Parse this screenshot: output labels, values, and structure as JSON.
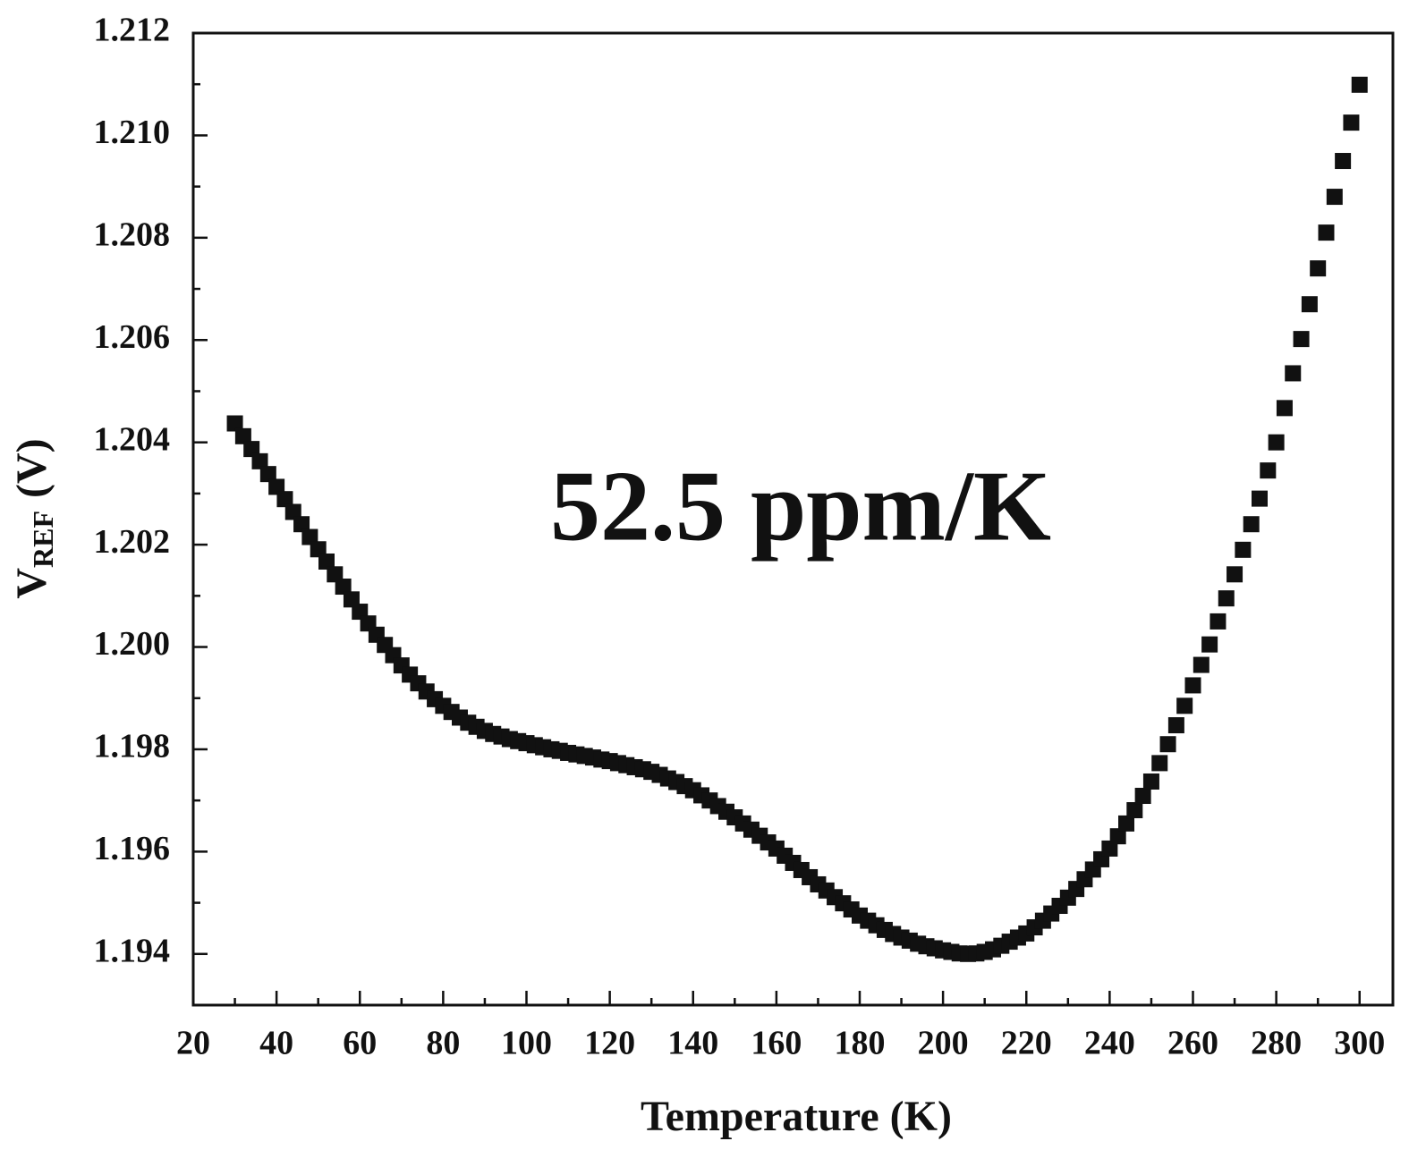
{
  "chart_data": {
    "type": "scatter",
    "x_label": "Temperature (K)",
    "y_label": "V",
    "y_label_sub": "REF",
    "y_label_unit": "(V)",
    "annotation": "52.5 ppm/K",
    "color": "#111111",
    "xlim": [
      20,
      308
    ],
    "ylim": [
      1.193,
      1.212
    ],
    "xticks": [
      20,
      40,
      60,
      80,
      100,
      120,
      140,
      160,
      180,
      200,
      220,
      240,
      260,
      280,
      300
    ],
    "xminorticks": [
      30,
      50,
      70,
      90,
      110,
      130,
      150,
      170,
      190,
      210,
      230,
      250,
      270,
      290
    ],
    "yticks": [
      1.194,
      1.196,
      1.198,
      {
        "value": 1.2,
        "label": "1.200"
      },
      1.202,
      1.204,
      1.206,
      1.208,
      {
        "value": 1.21,
        "label": "1.210"
      },
      1.212
    ],
    "yminorticks": [
      1.193,
      1.195,
      1.197,
      1.199,
      1.201,
      1.203,
      1.205,
      1.207,
      1.209,
      1.211
    ],
    "x": [
      30,
      32,
      34,
      36,
      38,
      40,
      42,
      44,
      46,
      48,
      50,
      52,
      54,
      56,
      58,
      60,
      62,
      64,
      66,
      68,
      70,
      72,
      74,
      76,
      78,
      80,
      82,
      84,
      86,
      88,
      90,
      92,
      94,
      96,
      98,
      100,
      102,
      104,
      106,
      108,
      110,
      112,
      114,
      116,
      118,
      120,
      122,
      124,
      126,
      128,
      130,
      132,
      134,
      136,
      138,
      140,
      142,
      144,
      146,
      148,
      150,
      152,
      154,
      156,
      158,
      160,
      162,
      164,
      166,
      168,
      170,
      172,
      174,
      176,
      178,
      180,
      182,
      184,
      186,
      188,
      190,
      192,
      194,
      196,
      198,
      200,
      202,
      204,
      206,
      208,
      210,
      212,
      214,
      216,
      218,
      220,
      222,
      224,
      226,
      228,
      230,
      232,
      234,
      236,
      238,
      240,
      242,
      244,
      246,
      248,
      250,
      252,
      254,
      256,
      258,
      260,
      262,
      264,
      266,
      268,
      270,
      272,
      274,
      276,
      278,
      280,
      282,
      284,
      286,
      288,
      290,
      292,
      294,
      296,
      298,
      300
    ],
    "values": [
      1.20437,
      1.20412,
      1.20387,
      1.20363,
      1.20338,
      1.20313,
      1.20289,
      1.20264,
      1.2024,
      1.20215,
      1.20191,
      1.20167,
      1.20142,
      1.20118,
      1.20093,
      1.20069,
      1.20046,
      1.20024,
      1.20004,
      1.19984,
      1.19964,
      1.19946,
      1.19929,
      1.19913,
      1.19898,
      1.19885,
      1.19873,
      1.19862,
      1.19852,
      1.19844,
      1.19836,
      1.1983,
      1.19825,
      1.1982,
      1.19816,
      1.19812,
      1.19808,
      1.19804,
      1.198,
      1.19797,
      1.19793,
      1.1979,
      1.19787,
      1.19784,
      1.1978,
      1.19777,
      1.19773,
      1.19769,
      1.19765,
      1.19761,
      1.19756,
      1.1975,
      1.19743,
      1.19736,
      1.19728,
      1.1972,
      1.1971,
      1.197,
      1.19689,
      1.19678,
      1.19667,
      1.19655,
      1.19643,
      1.19631,
      1.19618,
      1.19606,
      1.19592,
      1.19578,
      1.19564,
      1.1955,
      1.19536,
      1.19524,
      1.19511,
      1.19499,
      1.19487,
      1.19475,
      1.19465,
      1.19456,
      1.19447,
      1.19439,
      1.19432,
      1.19426,
      1.1942,
      1.19415,
      1.19411,
      1.19407,
      1.19404,
      1.19401,
      1.194,
      1.19401,
      1.19404,
      1.19409,
      1.19416,
      1.19424,
      1.19432,
      1.1944,
      1.19452,
      1.19465,
      1.19479,
      1.19494,
      1.1951,
      1.19527,
      1.19546,
      1.19565,
      1.19585,
      1.19606,
      1.1963,
      1.19655,
      1.19681,
      1.19709,
      1.19737,
      1.19773,
      1.1981,
      1.19847,
      1.19885,
      1.19925,
      1.19965,
      1.20005,
      1.2005,
      1.20095,
      1.20142,
      1.2019,
      1.2024,
      1.2029,
      1.20345,
      1.204,
      1.20467,
      1.20535,
      1.20602,
      1.2067,
      1.2074,
      1.2081,
      1.2088,
      1.2095,
      1.21025,
      1.21099
    ]
  }
}
